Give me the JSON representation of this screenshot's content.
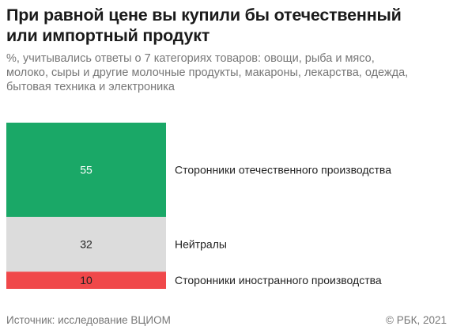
{
  "header": {
    "title_line1": "При равной цене вы купили бы отечественный",
    "title_line2": "или импортный продукт",
    "subtitle_line1": "%, учитывались ответы о 7 категориях товаров: овощи, рыба и мясо,",
    "subtitle_line2": "молоко, сыры и другие молочные продукты, макароны, лекарства, одежда,",
    "subtitle_line3": "бытовая техника и электроника"
  },
  "chart_data": {
    "type": "bar",
    "orientation": "stacked-vertical",
    "categories": [
      "Сторонники отечественного производства",
      "Нейтралы",
      "Сторонники иностранного производства"
    ],
    "values": [
      55,
      32,
      10
    ],
    "colors": [
      "#1aa867",
      "#dcdcdc",
      "#f0484a"
    ]
  },
  "footer": {
    "source": "Источник: исследование ВЦИОМ",
    "credit": "© РБК, 2021"
  }
}
